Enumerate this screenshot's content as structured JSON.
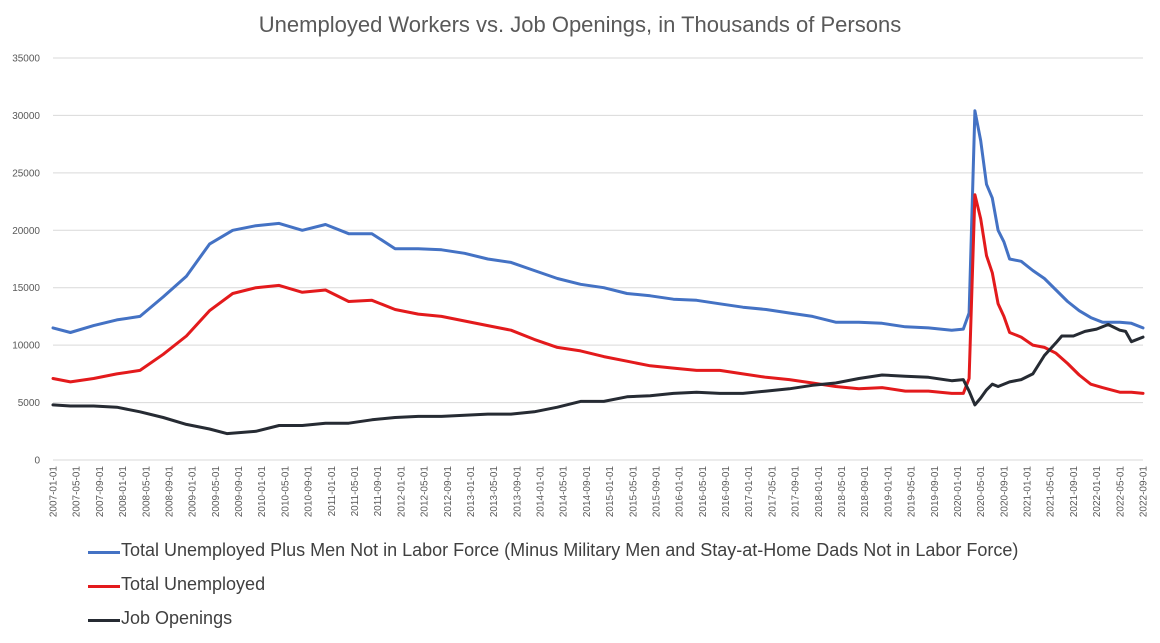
{
  "chart_data": {
    "type": "line",
    "title": "Unemployed Workers vs. Job Openings, in Thousands of Persons",
    "xlabel": "",
    "ylabel": "",
    "ylim": [
      0,
      35000
    ],
    "yticks": [
      0,
      5000,
      10000,
      15000,
      20000,
      25000,
      30000,
      35000
    ],
    "grid": true,
    "legend_position": "bottom",
    "x_start": "2007-01",
    "x_end": "2022-09",
    "x_tick_labels": [
      "2007-01-01",
      "2007-05-01",
      "2007-09-01",
      "2008-01-01",
      "2008-05-01",
      "2008-09-01",
      "2009-01-01",
      "2009-05-01",
      "2009-09-01",
      "2010-01-01",
      "2010-05-01",
      "2010-09-01",
      "2011-01-01",
      "2011-05-01",
      "2011-09-01",
      "2012-01-01",
      "2012-05-01",
      "2012-09-01",
      "2013-01-01",
      "2013-05-01",
      "2013-09-01",
      "2014-01-01",
      "2014-05-01",
      "2014-09-01",
      "2015-01-01",
      "2015-05-01",
      "2015-09-01",
      "2016-01-01",
      "2016-05-01",
      "2016-09-01",
      "2017-01-01",
      "2017-05-01",
      "2017-09-01",
      "2018-01-01",
      "2018-05-01",
      "2018-09-01",
      "2019-01-01",
      "2019-05-01",
      "2019-09-01",
      "2020-01-01",
      "2020-05-01",
      "2020-09-01",
      "2021-01-01",
      "2021-05-01",
      "2021-09-01",
      "2022-01-01",
      "2022-05-01",
      "2022-09-01"
    ],
    "series": [
      {
        "name": "Total Unemployed Plus Men Not in Labor Force (Minus Military Men and Stay-at-Home Dads Not in Labor Force)",
        "color": "#4472c4",
        "points": [
          [
            "2007-01",
            11500
          ],
          [
            "2007-04",
            11100
          ],
          [
            "2007-08",
            11700
          ],
          [
            "2007-12",
            12200
          ],
          [
            "2008-04",
            12500
          ],
          [
            "2008-08",
            14200
          ],
          [
            "2008-12",
            16000
          ],
          [
            "2009-04",
            18800
          ],
          [
            "2009-08",
            20000
          ],
          [
            "2009-12",
            20400
          ],
          [
            "2010-04",
            20600
          ],
          [
            "2010-08",
            20000
          ],
          [
            "2010-12",
            20500
          ],
          [
            "2011-04",
            19700
          ],
          [
            "2011-08",
            19700
          ],
          [
            "2011-12",
            18400
          ],
          [
            "2012-04",
            18400
          ],
          [
            "2012-08",
            18300
          ],
          [
            "2012-12",
            18000
          ],
          [
            "2013-04",
            17500
          ],
          [
            "2013-08",
            17200
          ],
          [
            "2013-12",
            16500
          ],
          [
            "2014-04",
            15800
          ],
          [
            "2014-08",
            15300
          ],
          [
            "2014-12",
            15000
          ],
          [
            "2015-04",
            14500
          ],
          [
            "2015-08",
            14300
          ],
          [
            "2015-12",
            14000
          ],
          [
            "2016-04",
            13900
          ],
          [
            "2016-08",
            13600
          ],
          [
            "2016-12",
            13300
          ],
          [
            "2017-04",
            13100
          ],
          [
            "2017-08",
            12800
          ],
          [
            "2017-12",
            12500
          ],
          [
            "2018-04",
            12000
          ],
          [
            "2018-08",
            12000
          ],
          [
            "2018-12",
            11900
          ],
          [
            "2019-04",
            11600
          ],
          [
            "2019-08",
            11500
          ],
          [
            "2019-12",
            11300
          ],
          [
            "2020-02",
            11400
          ],
          [
            "2020-03",
            12800
          ],
          [
            "2020-04",
            30400
          ],
          [
            "2020-05",
            27800
          ],
          [
            "2020-06",
            24000
          ],
          [
            "2020-07",
            22800
          ],
          [
            "2020-08",
            20000
          ],
          [
            "2020-09",
            19000
          ],
          [
            "2020-10",
            17500
          ],
          [
            "2020-12",
            17300
          ],
          [
            "2021-02",
            16500
          ],
          [
            "2021-04",
            15800
          ],
          [
            "2021-06",
            14800
          ],
          [
            "2021-08",
            13800
          ],
          [
            "2021-10",
            13000
          ],
          [
            "2021-12",
            12400
          ],
          [
            "2022-02",
            12000
          ],
          [
            "2022-05",
            12000
          ],
          [
            "2022-07",
            11900
          ],
          [
            "2022-09",
            11500
          ]
        ]
      },
      {
        "name": "Total Unemployed",
        "color": "#e31a1c",
        "points": [
          [
            "2007-01",
            7100
          ],
          [
            "2007-04",
            6800
          ],
          [
            "2007-08",
            7100
          ],
          [
            "2007-12",
            7500
          ],
          [
            "2008-04",
            7800
          ],
          [
            "2008-08",
            9200
          ],
          [
            "2008-12",
            10800
          ],
          [
            "2009-04",
            13000
          ],
          [
            "2009-08",
            14500
          ],
          [
            "2009-12",
            15000
          ],
          [
            "2010-04",
            15200
          ],
          [
            "2010-08",
            14600
          ],
          [
            "2010-12",
            14800
          ],
          [
            "2011-04",
            13800
          ],
          [
            "2011-08",
            13900
          ],
          [
            "2011-12",
            13100
          ],
          [
            "2012-04",
            12700
          ],
          [
            "2012-08",
            12500
          ],
          [
            "2012-12",
            12100
          ],
          [
            "2013-04",
            11700
          ],
          [
            "2013-08",
            11300
          ],
          [
            "2013-12",
            10500
          ],
          [
            "2014-04",
            9800
          ],
          [
            "2014-08",
            9500
          ],
          [
            "2014-12",
            9000
          ],
          [
            "2015-04",
            8600
          ],
          [
            "2015-08",
            8200
          ],
          [
            "2015-12",
            8000
          ],
          [
            "2016-04",
            7800
          ],
          [
            "2016-08",
            7800
          ],
          [
            "2016-12",
            7500
          ],
          [
            "2017-04",
            7200
          ],
          [
            "2017-08",
            7000
          ],
          [
            "2017-12",
            6700
          ],
          [
            "2018-04",
            6400
          ],
          [
            "2018-08",
            6200
          ],
          [
            "2018-12",
            6300
          ],
          [
            "2019-04",
            6000
          ],
          [
            "2019-08",
            6000
          ],
          [
            "2019-12",
            5800
          ],
          [
            "2020-02",
            5800
          ],
          [
            "2020-03",
            7100
          ],
          [
            "2020-04",
            23100
          ],
          [
            "2020-05",
            21000
          ],
          [
            "2020-06",
            17800
          ],
          [
            "2020-07",
            16300
          ],
          [
            "2020-08",
            13600
          ],
          [
            "2020-09",
            12500
          ],
          [
            "2020-10",
            11100
          ],
          [
            "2020-12",
            10700
          ],
          [
            "2021-02",
            10000
          ],
          [
            "2021-04",
            9800
          ],
          [
            "2021-06",
            9300
          ],
          [
            "2021-08",
            8400
          ],
          [
            "2021-10",
            7400
          ],
          [
            "2021-12",
            6600
          ],
          [
            "2022-02",
            6300
          ],
          [
            "2022-05",
            5900
          ],
          [
            "2022-07",
            5900
          ],
          [
            "2022-09",
            5800
          ]
        ]
      },
      {
        "name": "Job Openings",
        "color": "#262b33",
        "points": [
          [
            "2007-01",
            4800
          ],
          [
            "2007-04",
            4700
          ],
          [
            "2007-08",
            4700
          ],
          [
            "2007-12",
            4600
          ],
          [
            "2008-04",
            4200
          ],
          [
            "2008-08",
            3700
          ],
          [
            "2008-12",
            3100
          ],
          [
            "2009-04",
            2700
          ],
          [
            "2009-07",
            2300
          ],
          [
            "2009-12",
            2500
          ],
          [
            "2010-04",
            3000
          ],
          [
            "2010-08",
            3000
          ],
          [
            "2010-12",
            3200
          ],
          [
            "2011-04",
            3200
          ],
          [
            "2011-08",
            3500
          ],
          [
            "2011-12",
            3700
          ],
          [
            "2012-04",
            3800
          ],
          [
            "2012-08",
            3800
          ],
          [
            "2012-12",
            3900
          ],
          [
            "2013-04",
            4000
          ],
          [
            "2013-08",
            4000
          ],
          [
            "2013-12",
            4200
          ],
          [
            "2014-04",
            4600
          ],
          [
            "2014-08",
            5100
          ],
          [
            "2014-12",
            5100
          ],
          [
            "2015-04",
            5500
          ],
          [
            "2015-08",
            5600
          ],
          [
            "2015-12",
            5800
          ],
          [
            "2016-04",
            5900
          ],
          [
            "2016-08",
            5800
          ],
          [
            "2016-12",
            5800
          ],
          [
            "2017-04",
            6000
          ],
          [
            "2017-08",
            6200
          ],
          [
            "2017-12",
            6500
          ],
          [
            "2018-04",
            6700
          ],
          [
            "2018-08",
            7100
          ],
          [
            "2018-12",
            7400
          ],
          [
            "2019-04",
            7300
          ],
          [
            "2019-08",
            7200
          ],
          [
            "2019-12",
            6900
          ],
          [
            "2020-02",
            7000
          ],
          [
            "2020-03",
            6000
          ],
          [
            "2020-04",
            4800
          ],
          [
            "2020-05",
            5400
          ],
          [
            "2020-06",
            6100
          ],
          [
            "2020-07",
            6600
          ],
          [
            "2020-08",
            6400
          ],
          [
            "2020-10",
            6800
          ],
          [
            "2020-12",
            7000
          ],
          [
            "2021-02",
            7500
          ],
          [
            "2021-04",
            9100
          ],
          [
            "2021-06",
            10200
          ],
          [
            "2021-07",
            10800
          ],
          [
            "2021-09",
            10800
          ],
          [
            "2021-11",
            11200
          ],
          [
            "2022-01",
            11400
          ],
          [
            "2022-03",
            11800
          ],
          [
            "2022-05",
            11300
          ],
          [
            "2022-06",
            11200
          ],
          [
            "2022-07",
            10300
          ],
          [
            "2022-09",
            10700
          ]
        ]
      }
    ]
  }
}
